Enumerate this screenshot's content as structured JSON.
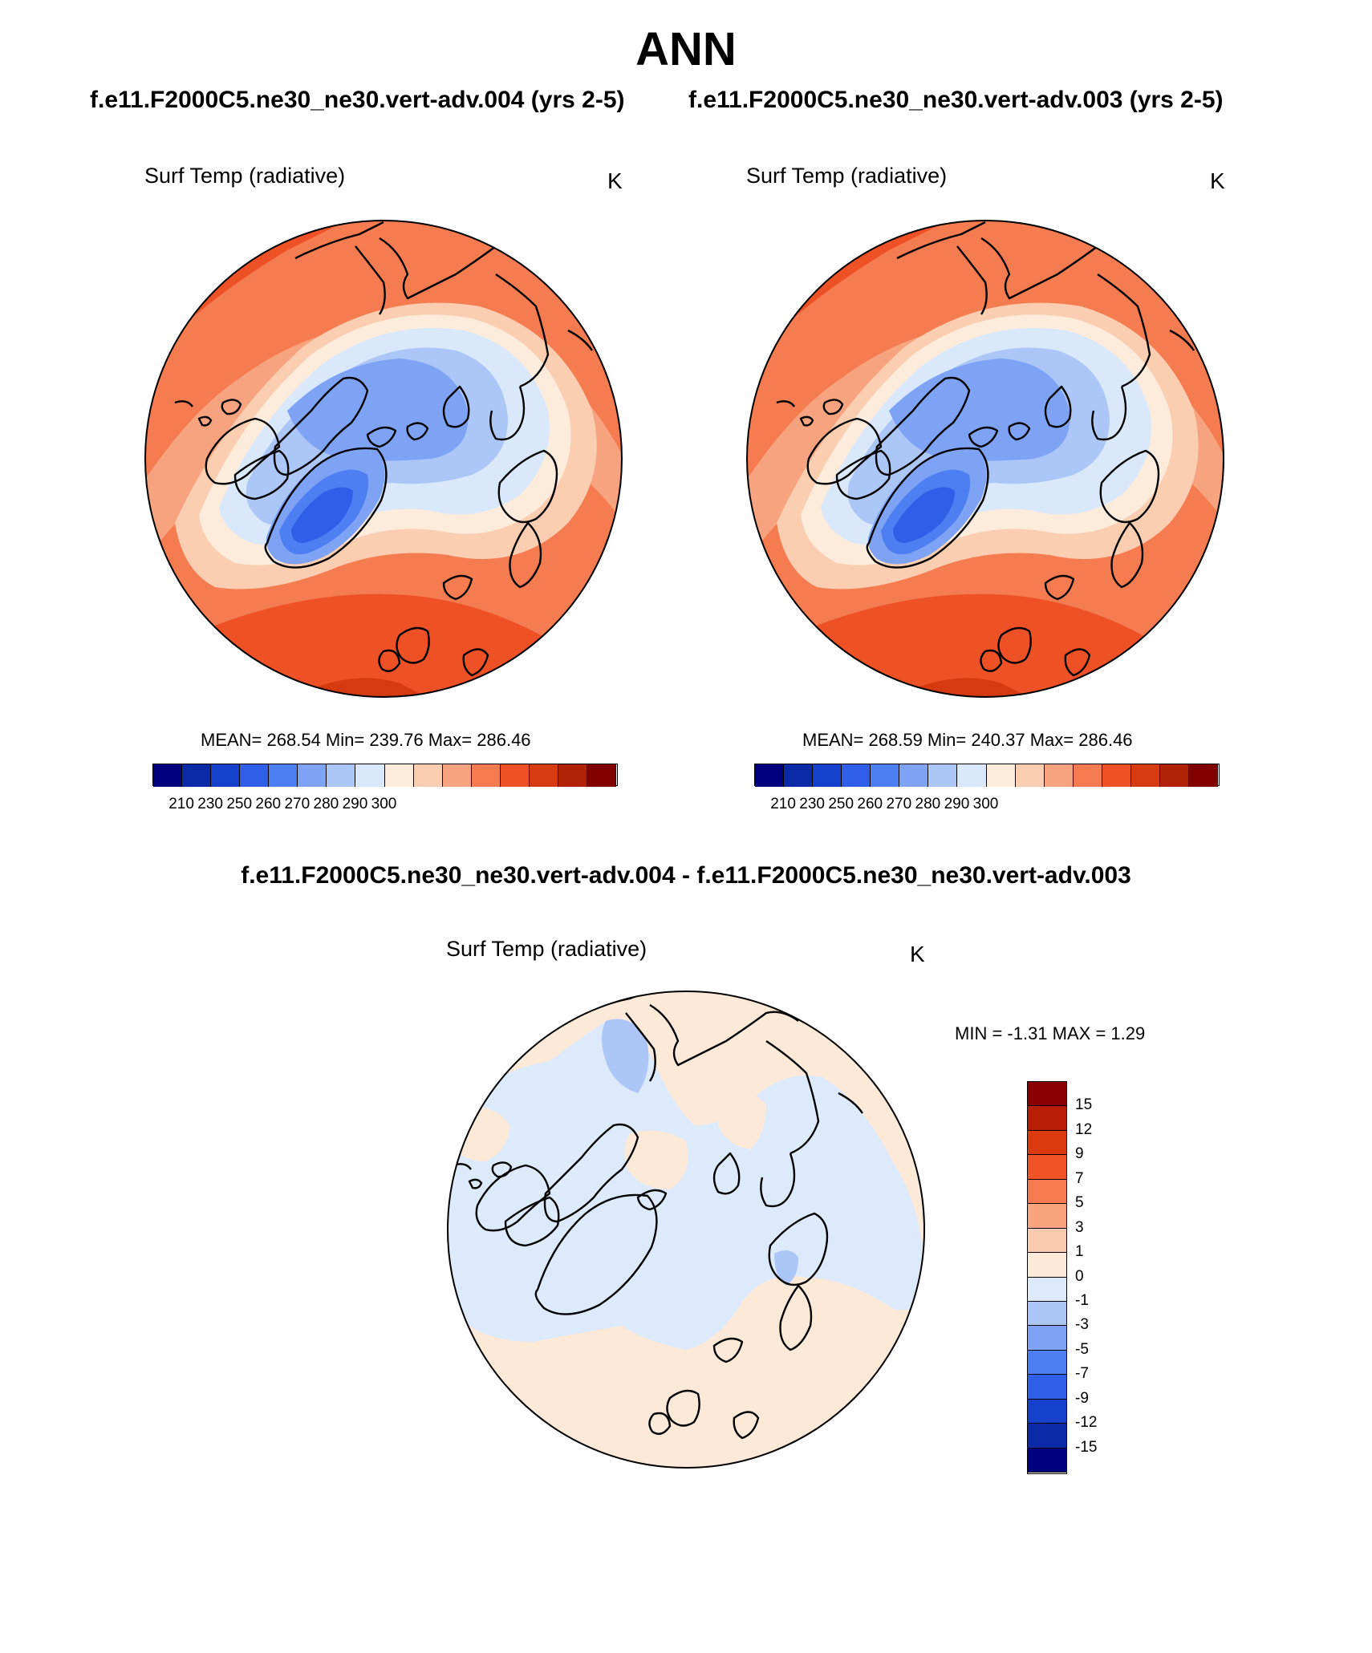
{
  "title": "ANN",
  "panels": {
    "left": {
      "case": "f.e11.F2000C5.ne30_ne30.vert-adv.004 (yrs 2-5)",
      "variable": "Surf Temp (radiative)",
      "units": "K",
      "stats": "MEAN= 268.54  Min= 239.76  Max= 286.46"
    },
    "right": {
      "case": "f.e11.F2000C5.ne30_ne30.vert-adv.003 (yrs 2-5)",
      "variable": "Surf Temp (radiative)",
      "units": "K",
      "stats": "MEAN= 268.59  Min= 240.37  Max= 286.46"
    },
    "diff": {
      "title": "f.e11.F2000C5.ne30_ne30.vert-adv.004 - f.e11.F2000C5.ne30_ne30.vert-adv.003",
      "variable": "Surf Temp (radiative)",
      "units": "K",
      "stats": "MIN =  -1.31 MAX =   1.29"
    }
  },
  "colorbar_abs": {
    "colors": [
      "#00007f",
      "#0a2aa8",
      "#1440cc",
      "#2f5fe8",
      "#4d7ef2",
      "#7ea3f5",
      "#abc6f7",
      "#d9e8fb",
      "#fdebdb",
      "#fbcdb1",
      "#f8a37f",
      "#f57b50",
      "#ee5126",
      "#d53a10",
      "#b02105",
      "#800000"
    ],
    "labels": [
      "210",
      "230",
      "250",
      "260",
      "270",
      "280",
      "290",
      "300"
    ]
  },
  "colorbar_diff": {
    "colors_top_to_bottom": [
      "#8b0000",
      "#b81d05",
      "#da3a0c",
      "#f05327",
      "#f57c50",
      "#f9a47e",
      "#fbcbad",
      "#fde9d8",
      "#dceafc",
      "#abc6f7",
      "#7ea3f5",
      "#4d7ef2",
      "#2f5fe8",
      "#1440cc",
      "#0a2aa8",
      "#00007f"
    ],
    "labels_top_to_bottom": [
      "15",
      "12",
      "9",
      "7",
      "5",
      "3",
      "1",
      "0",
      "-1",
      "-3",
      "-5",
      "-7",
      "-9",
      "-12",
      "-15"
    ]
  }
}
